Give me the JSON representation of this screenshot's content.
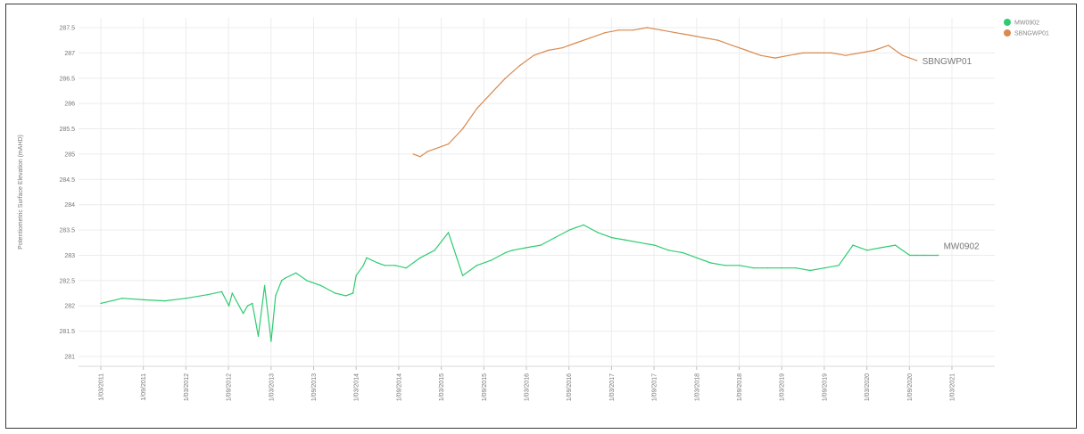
{
  "chart_data": {
    "type": "line",
    "title": "",
    "xlabel": "",
    "ylabel": "Potentiometric Surface Elevation (mAHD)",
    "ylim": [
      281,
      287.5
    ],
    "yticks": [
      "281",
      "281.5",
      "282",
      "282.5",
      "283",
      "283.5",
      "284",
      "284.5",
      "285",
      "285.5",
      "286",
      "286.5",
      "287",
      "287.5"
    ],
    "xticks": [
      "1/03/2011",
      "1/09/2011",
      "1/03/2012",
      "1/09/2012",
      "1/03/2013",
      "1/09/2013",
      "1/03/2014",
      "1/09/2014",
      "1/03/2015",
      "1/09/2015",
      "1/03/2016",
      "1/09/2016",
      "1/03/2017",
      "1/09/2017",
      "1/03/2018",
      "1/09/2018",
      "1/03/2019",
      "1/09/2019",
      "1/03/2020",
      "1/09/2020",
      "1/03/2021"
    ],
    "grid": true,
    "legend_position": "top-right",
    "series": [
      {
        "name": "MW0902",
        "color": "#2ecc71",
        "end_label": "MW0902",
        "x": [
          "2011-03-01",
          "2011-06-01",
          "2011-09-01",
          "2011-12-01",
          "2012-03-01",
          "2012-06-01",
          "2012-08-01",
          "2012-09-01",
          "2012-09-15",
          "2012-11-01",
          "2012-11-20",
          "2012-12-10",
          "2013-01-05",
          "2013-02-01",
          "2013-03-01",
          "2013-03-20",
          "2013-04-15",
          "2013-05-01",
          "2013-06-15",
          "2013-08-01",
          "2013-10-01",
          "2013-12-01",
          "2014-01-15",
          "2014-02-15",
          "2014-03-01",
          "2014-04-01",
          "2014-04-15",
          "2014-06-01",
          "2014-07-01",
          "2014-08-15",
          "2014-10-01",
          "2014-12-01",
          "2015-02-01",
          "2015-04-01",
          "2015-06-01",
          "2015-08-01",
          "2015-10-01",
          "2015-12-01",
          "2016-01-01",
          "2016-03-01",
          "2016-05-01",
          "2016-07-01",
          "2016-09-01",
          "2016-10-01",
          "2016-11-01",
          "2017-01-01",
          "2017-03-01",
          "2017-05-01",
          "2017-07-01",
          "2017-09-01",
          "2017-11-01",
          "2018-01-01",
          "2018-03-01",
          "2018-05-01",
          "2018-07-01",
          "2018-09-01",
          "2018-11-01",
          "2019-01-01",
          "2019-03-01",
          "2019-05-01",
          "2019-07-01",
          "2019-09-01",
          "2019-11-01",
          "2020-01-01",
          "2020-03-01",
          "2020-05-01",
          "2020-07-01",
          "2020-09-01",
          "2020-10-01",
          "2020-11-01",
          "2021-01-01"
        ],
        "y": [
          282.05,
          282.15,
          282.12,
          282.1,
          282.15,
          282.22,
          282.28,
          282.0,
          282.25,
          281.85,
          282.0,
          282.05,
          281.4,
          282.4,
          281.3,
          282.2,
          282.5,
          282.55,
          282.65,
          282.5,
          282.4,
          282.25,
          282.2,
          282.25,
          282.6,
          282.8,
          282.95,
          282.85,
          282.8,
          282.8,
          282.75,
          282.95,
          283.1,
          283.45,
          282.6,
          282.8,
          282.9,
          283.05,
          283.1,
          283.15,
          283.2,
          283.35,
          283.5,
          283.55,
          283.6,
          283.45,
          283.35,
          283.3,
          283.25,
          283.2,
          283.1,
          283.05,
          282.95,
          282.85,
          282.8,
          282.8,
          282.75,
          282.75,
          282.75,
          282.75,
          282.7,
          282.75,
          282.8,
          283.2,
          283.1,
          283.15,
          283.2,
          283.0,
          283.0,
          283.0,
          283.0
        ]
      },
      {
        "name": "SBNGWP01",
        "color": "#d98a4f",
        "end_label": "SBNGWP01",
        "x": [
          "2014-11-01",
          "2014-12-01",
          "2015-01-01",
          "2015-02-01",
          "2015-04-01",
          "2015-06-01",
          "2015-08-01",
          "2015-10-01",
          "2015-12-01",
          "2016-02-01",
          "2016-04-01",
          "2016-06-01",
          "2016-08-01",
          "2016-10-01",
          "2016-12-01",
          "2017-02-01",
          "2017-04-01",
          "2017-06-01",
          "2017-08-01",
          "2017-10-01",
          "2017-12-01",
          "2018-02-01",
          "2018-04-01",
          "2018-06-01",
          "2018-08-01",
          "2018-10-01",
          "2018-12-01",
          "2019-02-01",
          "2019-04-01",
          "2019-06-01",
          "2019-08-01",
          "2019-10-01",
          "2019-12-01",
          "2020-02-01",
          "2020-04-01",
          "2020-06-01",
          "2020-08-01",
          "2020-10-01"
        ],
        "y": [
          285.0,
          284.95,
          285.05,
          285.1,
          285.2,
          285.5,
          285.9,
          286.2,
          286.5,
          286.75,
          286.95,
          287.05,
          287.1,
          287.2,
          287.3,
          287.4,
          287.45,
          287.45,
          287.5,
          287.45,
          287.4,
          287.35,
          287.3,
          287.25,
          287.15,
          287.05,
          286.95,
          286.9,
          286.95,
          287.0,
          287.0,
          287.0,
          286.95,
          287.0,
          287.05,
          287.15,
          286.95,
          286.85
        ]
      }
    ]
  }
}
